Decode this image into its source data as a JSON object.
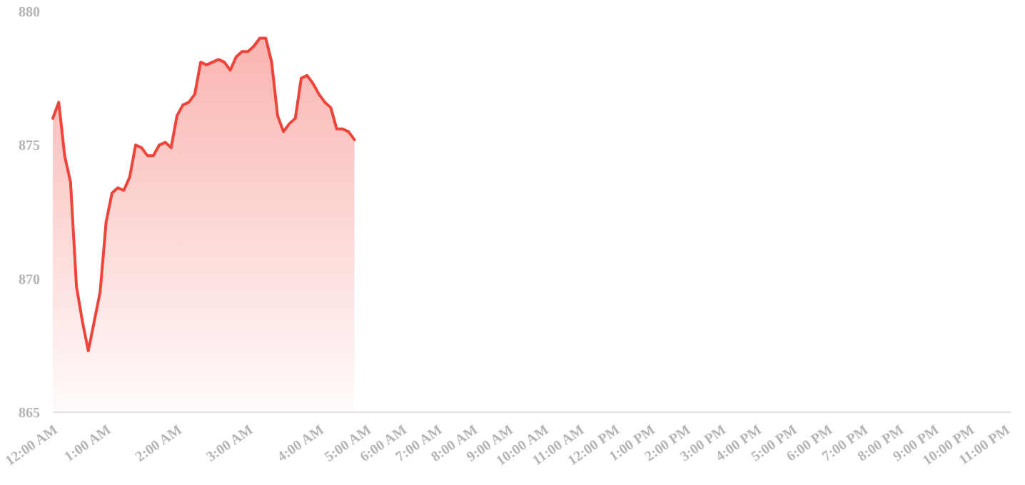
{
  "chart_data": {
    "type": "area",
    "categories": [
      "12:00 AM",
      null,
      null,
      null,
      null,
      null,
      null,
      null,
      null,
      "1:00 AM",
      null,
      null,
      null,
      null,
      null,
      null,
      null,
      null,
      null,
      null,
      null,
      "2:00 AM",
      null,
      null,
      null,
      null,
      null,
      null,
      null,
      null,
      null,
      null,
      null,
      "3:00 AM",
      null,
      null,
      null,
      null,
      null,
      null,
      null,
      null,
      null,
      null,
      null,
      "4:00 AM",
      null,
      null,
      null,
      null,
      null,
      null,
      null,
      "5:00 AM",
      null,
      null,
      null,
      null,
      null,
      "6:00 AM",
      null,
      null,
      null,
      null,
      null,
      "7:00 AM",
      null,
      null,
      null,
      null,
      null,
      "8:00 AM",
      null,
      null,
      null,
      null,
      null,
      "9:00 AM",
      null,
      null,
      null,
      null,
      null,
      "10:00 AM",
      null,
      null,
      null,
      null,
      null,
      "11:00 AM",
      null,
      null,
      null,
      null,
      null,
      "12:00 PM",
      null,
      null,
      null,
      null,
      null,
      "1:00 PM",
      null,
      null,
      null,
      null,
      null,
      "2:00 PM",
      null,
      null,
      null,
      null,
      null,
      "3:00 PM",
      null,
      null,
      null,
      null,
      null,
      "4:00 PM",
      null,
      null,
      null,
      null,
      null,
      "5:00 PM",
      null,
      null,
      null,
      null,
      null,
      "6:00 PM",
      null,
      null,
      null,
      null,
      null,
      "7:00 PM",
      null,
      null,
      null,
      null,
      null,
      "8:00 PM",
      null,
      null,
      null,
      null,
      null,
      "9:00 PM",
      null,
      null,
      null,
      null,
      null,
      "10:00 PM",
      null,
      null,
      null,
      null,
      null,
      "11:00 PM"
    ],
    "series": [
      {
        "color": "#f0443a",
        "values": [
          876.0,
          876.6,
          874.6,
          873.6,
          869.7,
          868.4,
          867.3,
          868.4,
          869.5,
          872.1,
          873.2,
          873.4,
          873.3,
          873.8,
          875.0,
          874.9,
          874.6,
          874.6,
          875.0,
          875.1,
          874.9,
          876.1,
          876.5,
          876.6,
          876.9,
          878.1,
          878.0,
          878.1,
          878.2,
          878.1,
          877.8,
          878.3,
          878.5,
          878.5,
          878.7,
          879.0,
          879.0,
          878.1,
          876.1,
          875.5,
          875.8,
          876.0,
          877.5,
          877.6,
          877.3,
          876.9,
          876.6,
          876.4,
          875.6,
          875.6,
          875.5,
          875.2,
          null,
          null,
          null,
          null,
          null,
          null,
          null,
          null,
          null,
          null,
          null,
          null,
          null,
          null,
          null,
          null,
          null,
          null,
          null,
          null,
          null,
          null,
          null,
          null,
          null,
          null,
          null,
          null,
          null,
          null,
          null,
          null,
          null,
          null,
          null,
          null,
          null,
          null,
          null,
          null,
          null,
          null,
          null,
          null,
          null,
          null,
          null,
          null,
          null,
          null,
          null,
          null,
          null,
          null,
          null,
          null,
          null,
          null,
          null,
          null,
          null,
          null,
          null,
          null,
          null,
          null,
          null,
          null,
          null,
          null,
          null,
          null,
          null,
          null,
          null,
          null,
          null,
          null,
          null,
          null,
          null,
          null,
          null,
          null,
          null,
          null,
          null,
          null,
          null,
          null,
          null,
          null,
          null,
          null,
          null,
          null,
          null,
          null,
          null,
          null,
          null,
          null,
          null,
          null,
          null,
          null,
          null,
          null,
          null,
          null
        ]
      }
    ],
    "ylim": [
      865,
      880
    ],
    "yticks": [
      865,
      870,
      875,
      880
    ],
    "grid": false,
    "marker": "none",
    "line_style": "solid"
  }
}
